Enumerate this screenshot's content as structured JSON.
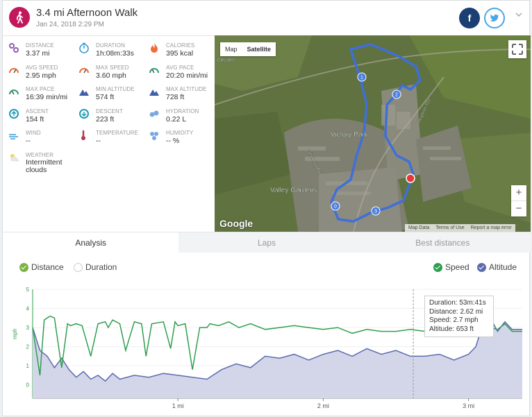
{
  "header": {
    "title": "3.4 mi Afternoon Walk",
    "subtitle": "Jan 24, 2018 2:29 PM",
    "activity_icon": "walking-person-icon",
    "share_facebook": "f",
    "share_twitter": "twitter-bird-icon",
    "brand_color": "#c2185b"
  },
  "stats": [
    {
      "label": "DISTANCE",
      "value": "3.37 mi",
      "icon": "distance-icon"
    },
    {
      "label": "DURATION",
      "value": "1h:08m:33s",
      "icon": "stopwatch-icon"
    },
    {
      "label": "CALORIES",
      "value": "395 kcal",
      "icon": "flame-icon"
    },
    {
      "label": "AVG SPEED",
      "value": "2.95 mph",
      "icon": "speedometer-icon"
    },
    {
      "label": "MAX SPEED",
      "value": "3.60 mph",
      "icon": "speedometer-icon"
    },
    {
      "label": "AVG PACE",
      "value": "20:20 min/mi",
      "icon": "pace-icon"
    },
    {
      "label": "MAX PACE",
      "value": "16:39 min/mi",
      "icon": "pace-icon"
    },
    {
      "label": "MIN ALTITUDE",
      "value": "574 ft",
      "icon": "mountain-icon"
    },
    {
      "label": "MAX ALTITUDE",
      "value": "728 ft",
      "icon": "mountain-icon"
    },
    {
      "label": "ASCENT",
      "value": "154 ft",
      "icon": "ascent-icon"
    },
    {
      "label": "DESCENT",
      "value": "223 ft",
      "icon": "descent-icon"
    },
    {
      "label": "HYDRATION",
      "value": "0.22 L",
      "icon": "droplets-icon"
    },
    {
      "label": "WIND",
      "value": "--",
      "icon": "wind-icon"
    },
    {
      "label": "TEMPERATURE",
      "value": "--",
      "icon": "thermometer-icon"
    },
    {
      "label": "HUMIDITY",
      "value": "-- %",
      "icon": "humidity-icon"
    },
    {
      "label": "WEATHER",
      "value": "Intermittent clouds",
      "icon": "cloud-sun-icon"
    }
  ],
  "map": {
    "type_map": "Map",
    "type_satellite": "Satellite",
    "zoom_in": "+",
    "zoom_out": "−",
    "attribution": [
      "Map Data",
      "Terms of Use",
      "Report a map error"
    ],
    "google": "Google",
    "labels": [
      "Victory Park",
      "Valley Gardens",
      "Gisburn Rd",
      "Skipton Rd",
      "cewell"
    ],
    "markers": [
      "0",
      "1",
      "2",
      "3"
    ]
  },
  "tabs": [
    "Analysis",
    "Laps",
    "Best distances"
  ],
  "legend": {
    "distance": "Distance",
    "duration": "Duration",
    "speed": "Speed",
    "altitude": "Altitude"
  },
  "tooltip": {
    "duration": "Duration: 53m:41s",
    "distance": "Distance: 2.62 mi",
    "speed": "Speed: 2.7 mph",
    "altitude": "Altitude: 653 ft"
  },
  "chart_data": {
    "type": "line",
    "xlabel": "",
    "ylabel": "mph",
    "ylim": [
      0,
      5
    ],
    "xlim": [
      0,
      3.37
    ],
    "x_tick_labels": [
      "1 mi",
      "2 mi",
      "3 mi"
    ],
    "x_ticks": [
      1,
      2,
      3
    ],
    "y_tick_labels": [
      "0",
      "1",
      "2",
      "3",
      "4",
      "5"
    ],
    "colors": {
      "speed": "#2e9e4f",
      "altitude": "#5c6bb0",
      "altitude_fill": "#d3d6e8"
    },
    "series": [
      {
        "name": "Speed",
        "x": [
          0.0,
          0.05,
          0.08,
          0.12,
          0.15,
          0.2,
          0.24,
          0.26,
          0.3,
          0.34,
          0.4,
          0.45,
          0.5,
          0.52,
          0.55,
          0.6,
          0.64,
          0.7,
          0.75,
          0.78,
          0.82,
          0.9,
          0.95,
          0.98,
          1.0,
          1.05,
          1.1,
          1.15,
          1.2,
          1.22,
          1.28,
          1.35,
          1.42,
          1.5,
          1.6,
          1.7,
          1.8,
          1.9,
          2.0,
          2.1,
          2.2,
          2.3,
          2.4,
          2.5,
          2.6,
          2.7,
          2.8,
          2.9,
          3.0,
          3.05,
          3.1,
          3.15,
          3.2,
          3.25,
          3.3,
          3.37
        ],
        "values": [
          3.0,
          0.5,
          3.4,
          3.6,
          3.5,
          0.9,
          3.2,
          3.1,
          3.2,
          3.1,
          1.5,
          3.2,
          3.3,
          3.0,
          3.4,
          3.2,
          1.8,
          3.3,
          3.2,
          1.5,
          3.2,
          3.3,
          1.9,
          3.3,
          3.1,
          3.2,
          0.8,
          3.0,
          3.0,
          3.2,
          3.1,
          3.3,
          3.0,
          3.2,
          2.9,
          3.0,
          3.1,
          3.0,
          2.9,
          3.0,
          2.7,
          2.9,
          2.8,
          2.8,
          2.9,
          2.8,
          2.9,
          2.7,
          2.8,
          2.8,
          2.9,
          3.0,
          2.9,
          3.2,
          2.8,
          2.8
        ]
      },
      {
        "name": "Altitude",
        "x": [
          0.0,
          0.05,
          0.1,
          0.15,
          0.2,
          0.25,
          0.3,
          0.35,
          0.4,
          0.45,
          0.5,
          0.55,
          0.6,
          0.7,
          0.8,
          0.9,
          1.0,
          1.1,
          1.2,
          1.3,
          1.4,
          1.5,
          1.6,
          1.7,
          1.8,
          1.9,
          2.0,
          2.1,
          2.2,
          2.3,
          2.4,
          2.5,
          2.6,
          2.7,
          2.8,
          2.9,
          3.0,
          3.05,
          3.1,
          3.15,
          3.2,
          3.25,
          3.3,
          3.37
        ],
        "values": [
          3.0,
          1.8,
          1.5,
          0.9,
          1.4,
          0.8,
          0.4,
          0.7,
          0.3,
          0.5,
          0.2,
          0.6,
          0.3,
          0.5,
          0.4,
          0.6,
          0.5,
          0.4,
          0.3,
          0.8,
          1.1,
          0.9,
          1.5,
          1.4,
          1.6,
          1.3,
          1.6,
          1.8,
          1.5,
          1.9,
          1.6,
          1.8,
          1.5,
          1.5,
          1.6,
          1.3,
          1.6,
          2.0,
          3.2,
          3.5,
          2.8,
          3.3,
          2.9,
          2.9
        ]
      }
    ],
    "cursor_x": 2.62,
    "grid": true
  }
}
